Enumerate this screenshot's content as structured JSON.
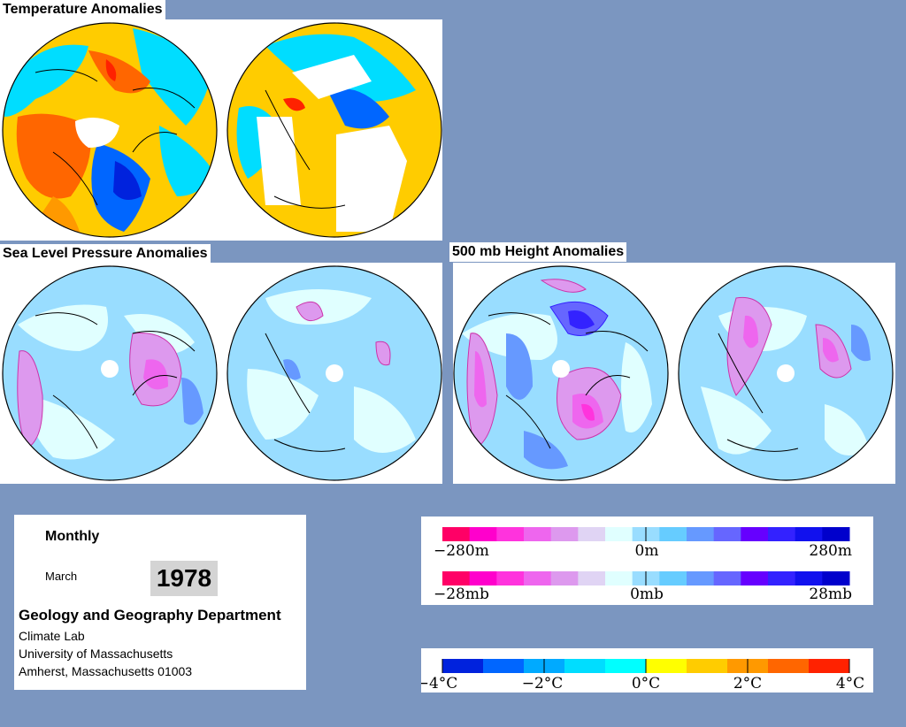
{
  "titles": {
    "temperature": "Temperature Anomalies",
    "slp": "Sea Level Pressure Anomalies",
    "height500": "500 mb Height Anomalies"
  },
  "info": {
    "period": "Monthly",
    "month": "March",
    "year": "1978",
    "department": "Geology and Geography Department",
    "lines": [
      "Climate Lab",
      "University of Massachusetts",
      "Amherst, Massachusetts 01003"
    ]
  },
  "legends": {
    "height": {
      "left": "−280m",
      "center": "0m",
      "right": "280m"
    },
    "pressure": {
      "left": "−28mb",
      "center": "0mb",
      "right": "28mb"
    },
    "temperature": {
      "labels": [
        "−4°C",
        "−2°C",
        "0°C",
        "2°C",
        "4°C"
      ]
    }
  },
  "colors": {
    "background": "#7b96c0",
    "anomaly_scale": [
      "#ff0066",
      "#ff00cc",
      "#ff33dd",
      "#ee66ee",
      "#dd99ee",
      "#e0d4f4",
      "#e0ffff",
      "#99ddff",
      "#66ccff",
      "#6699ff",
      "#6666ff",
      "#6600ff",
      "#3322ff",
      "#1111ee",
      "#0000cc"
    ],
    "temperature_scale": [
      "#0022dd",
      "#0066ff",
      "#00aaff",
      "#00ddff",
      "#00ffff",
      "#ffff00",
      "#ffcc00",
      "#ff9900",
      "#ff6600",
      "#ff2200"
    ]
  },
  "maps": [
    {
      "id": "temp-nh",
      "hemisphere": "northern"
    },
    {
      "id": "temp-sh",
      "hemisphere": "southern"
    },
    {
      "id": "slp-nh",
      "hemisphere": "northern"
    },
    {
      "id": "slp-sh",
      "hemisphere": "southern"
    },
    {
      "id": "z500-nh",
      "hemisphere": "northern"
    },
    {
      "id": "z500-sh",
      "hemisphere": "southern"
    }
  ]
}
